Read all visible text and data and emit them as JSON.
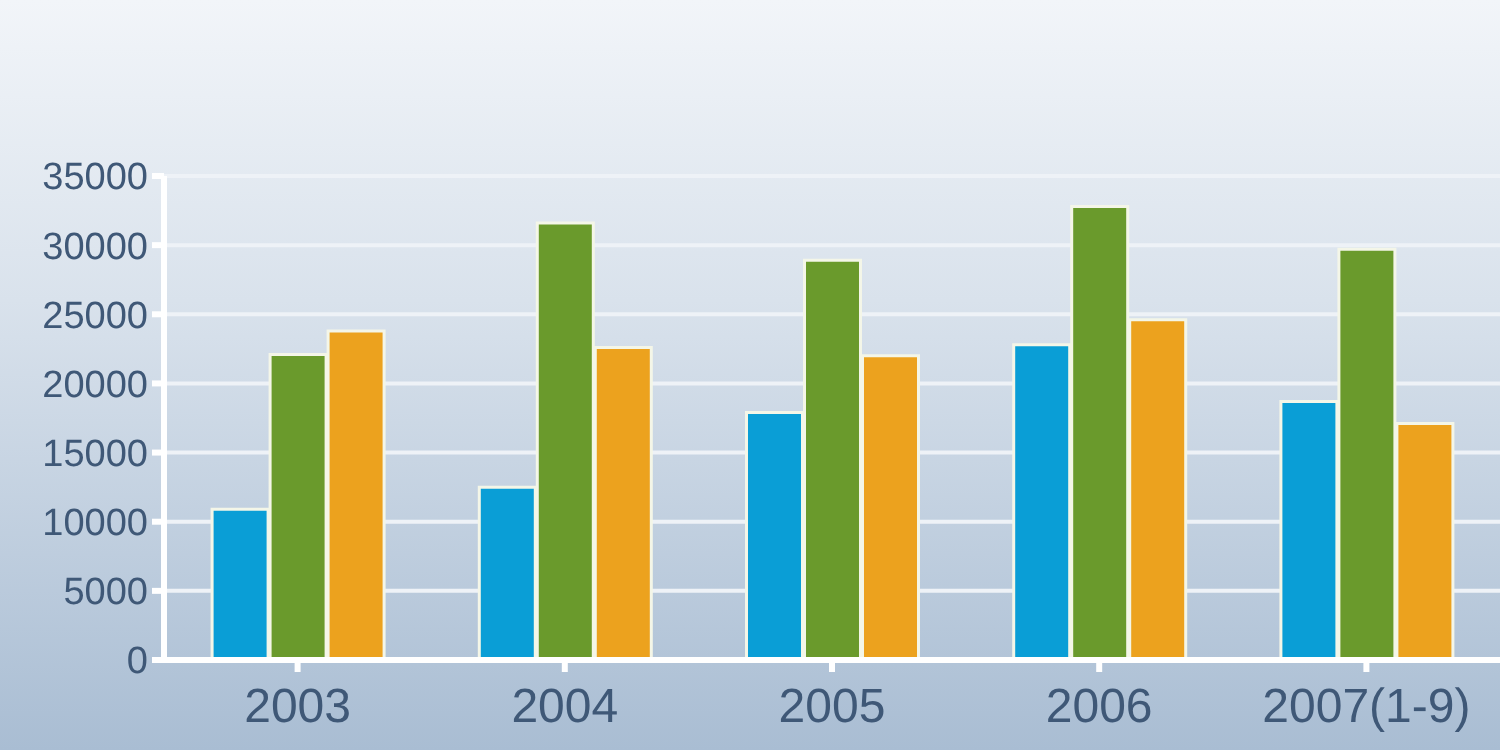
{
  "chart_data": {
    "type": "bar",
    "categories": [
      "2003",
      "2004",
      "2005",
      "2006",
      "2007(1-9)"
    ],
    "series": [
      {
        "color": "#0a9ed6",
        "values": [
          10900,
          12500,
          17900,
          22800,
          18700
        ]
      },
      {
        "color": "#6a9a2c",
        "values": [
          22100,
          31600,
          28900,
          32800,
          29700
        ]
      },
      {
        "color": "#eca21e",
        "values": [
          23800,
          22600,
          22000,
          24600,
          17100
        ]
      }
    ],
    "ylim": [
      0,
      35000
    ],
    "yticks": [
      0,
      5000,
      10000,
      15000,
      20000,
      25000,
      30000,
      35000
    ],
    "grid": "y"
  }
}
